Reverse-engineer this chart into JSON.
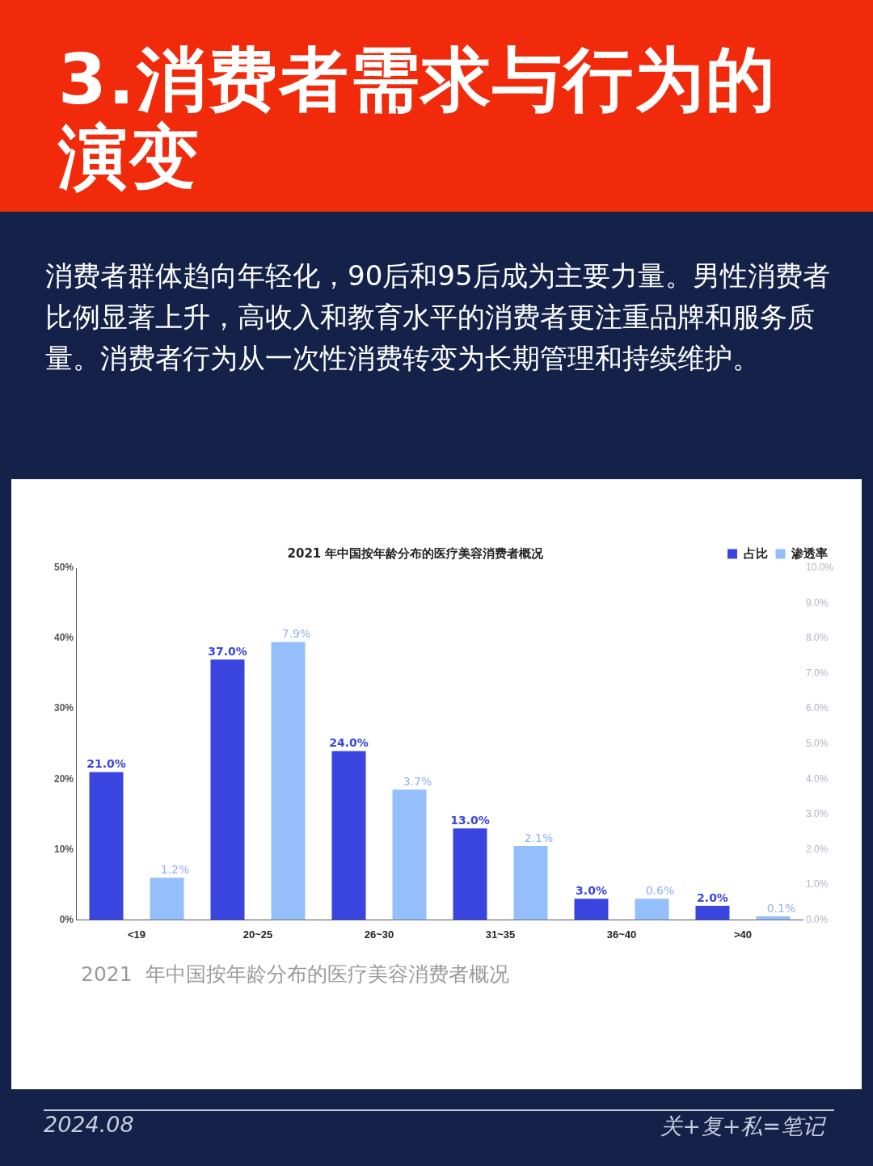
{
  "chart_data": {
    "type": "bar",
    "title": "3.消费者需求与行为的演变",
    "subtitle": "消费者群体趋向年轻化，90后和95后成为主要力量。男性消费者比例显著上升，高收入和教育水平的消费者更注重品牌和服务质量。消费者行为从一次性消费转变为长期管理和持续维护。",
    "categories": [
      "<19",
      "20~25",
      "26~30",
      "31~35",
      "36~40",
      ">40"
    ],
    "series": [
      {
        "name": "占比",
        "color": "#3a45e0",
        "values": [
          21.0,
          37.0,
          24.0,
          13.0,
          3.0,
          2.0
        ],
        "value_labels": [
          "21.0%",
          "37.0%",
          "24.0%",
          "13.0%",
          "3.0%",
          "2.0%"
        ]
      },
      {
        "name": "渗透率",
        "color": "#94bffa",
        "axis": "y2",
        "values": [
          1.2,
          7.9,
          3.7,
          2.1,
          0.6,
          0.1
        ],
        "value_labels": [
          "1.2%",
          "7.9%",
          "3.7%",
          "2.1%",
          "0.6%",
          "0.1%"
        ]
      }
    ],
    "ylim": [
      0,
      50
    ],
    "yticks": [
      {
        "value": 0,
        "label": "0%"
      },
      {
        "value": 10,
        "label": "10%"
      },
      {
        "value": 20,
        "label": "20%"
      },
      {
        "value": 30,
        "label": "30%"
      },
      {
        "value": 40,
        "label": "40%"
      },
      {
        "value": 50,
        "label": "50%"
      }
    ],
    "y2lim": [
      0,
      10
    ],
    "y2ticks": [
      {
        "value": 0,
        "label": "0.0%"
      },
      {
        "value": 1,
        "label": "1.0%"
      },
      {
        "value": 2,
        "label": "2.0%"
      },
      {
        "value": 3,
        "label": "3.0%"
      },
      {
        "value": 4,
        "label": "4.0%"
      },
      {
        "value": 5,
        "label": "5.0%"
      },
      {
        "value": 6,
        "label": "6.0%"
      },
      {
        "value": 7,
        "label": "7.0%"
      },
      {
        "value": 8,
        "label": "8.0%"
      },
      {
        "value": 9,
        "label": "9.0%"
      },
      {
        "value": 10,
        "label": "10.0%"
      }
    ],
    "grid": false,
    "legend": "top right",
    "annotations": [
      "2021 年中国按年龄分布的医疗美容消费者概况",
      "2021  年中国按年龄分布的医疗美容消费者概况",
      "2024.08",
      "关+复+私=笔记"
    ]
  }
}
